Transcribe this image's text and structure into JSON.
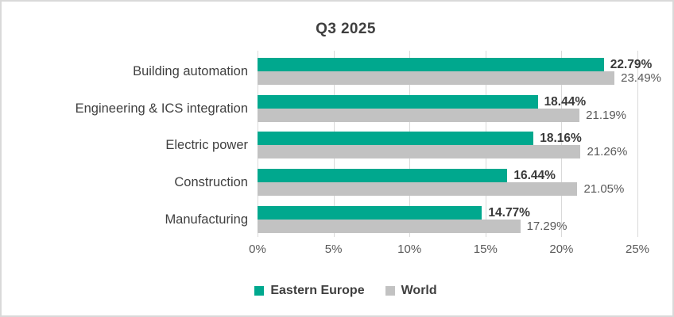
{
  "window": {
    "background_color": "#FFFFFF",
    "border_color": "#D9D9D9"
  },
  "chart_data": {
    "type": "bar",
    "orientation": "horizontal",
    "title": "Q3 2025",
    "categories": [
      "Building automation",
      "Engineering & ICS integration",
      "Electric power",
      "Construction",
      "Manufacturing"
    ],
    "series": [
      {
        "name": "Eastern Europe",
        "color": "#00A88E",
        "values": [
          22.79,
          18.44,
          18.16,
          16.44,
          14.77
        ],
        "value_labels": [
          "22.79%",
          "18.44%",
          "18.16%",
          "16.44%",
          "14.77%"
        ],
        "label_style": "primary"
      },
      {
        "name": "World",
        "color": "#C2C2C2",
        "values": [
          23.49,
          21.19,
          21.26,
          21.05,
          17.29
        ],
        "value_labels": [
          "23.49%",
          "21.19%",
          "21.26%",
          "21.05%",
          "17.29%"
        ],
        "label_style": "secondary"
      }
    ],
    "x_axis": {
      "min": 0,
      "max": 25,
      "tick_interval": 5,
      "tick_labels": [
        "0%",
        "5%",
        "10%",
        "15%",
        "20%",
        "25%"
      ]
    },
    "legend": {
      "position": "bottom",
      "entries": [
        "Eastern Europe",
        "World"
      ]
    },
    "grid": true,
    "gridline_color": "#D9D9D9",
    "text_colors": {
      "title": "#3F3F3F",
      "category": "#404040",
      "value_primary": "#3A3A3A",
      "value_secondary": "#595959",
      "axis": "#595959",
      "legend": "#3F3F3F"
    }
  }
}
